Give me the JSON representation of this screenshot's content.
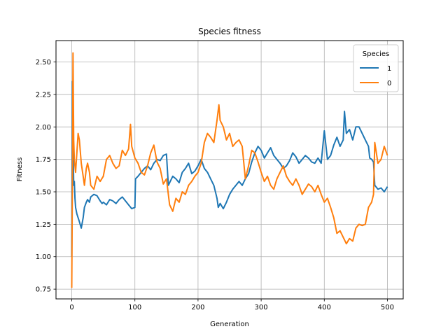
{
  "chart_data": {
    "type": "line",
    "title": "Species fitness",
    "xlabel": "Generation",
    "ylabel": "Fitness",
    "xlim": [
      -25,
      525
    ],
    "ylim": [
      0.675,
      2.665
    ],
    "xticks": [
      0,
      100,
      200,
      300,
      400,
      500
    ],
    "yticks": [
      0.75,
      1.0,
      1.25,
      1.5,
      1.75,
      2.0,
      2.25,
      2.5
    ],
    "xtick_labels": [
      "0",
      "100",
      "200",
      "300",
      "400",
      "500"
    ],
    "ytick_labels": [
      "0.75",
      "1.00",
      "1.25",
      "1.50",
      "1.75",
      "2.00",
      "2.25",
      "2.50"
    ],
    "grid": true,
    "legend": {
      "title": "Species",
      "placement": "top-right"
    },
    "series": [
      {
        "name": "1",
        "color": "#1f77b4",
        "x": [
          0,
          1,
          2,
          3,
          4,
          5,
          6,
          8,
          10,
          12,
          15,
          18,
          20,
          23,
          25,
          28,
          30,
          35,
          40,
          45,
          48,
          50,
          55,
          60,
          65,
          70,
          75,
          80,
          85,
          90,
          95,
          100,
          101,
          105,
          110,
          115,
          120,
          125,
          130,
          135,
          140,
          145,
          150,
          153,
          156,
          160,
          165,
          170,
          175,
          180,
          185,
          190,
          195,
          200,
          205,
          210,
          215,
          220,
          225,
          230,
          232,
          235,
          240,
          245,
          250,
          255,
          260,
          265,
          270,
          275,
          280,
          285,
          290,
          295,
          300,
          305,
          310,
          315,
          320,
          325,
          330,
          335,
          340,
          345,
          350,
          355,
          360,
          365,
          370,
          375,
          380,
          385,
          390,
          395,
          400,
          405,
          410,
          415,
          420,
          425,
          430,
          432,
          435,
          440,
          445,
          450,
          455,
          460,
          465,
          470,
          472,
          475,
          478,
          480,
          485,
          490,
          495,
          500
        ],
        "y": [
          1.0,
          2.35,
          1.95,
          1.55,
          1.58,
          1.45,
          1.38,
          1.33,
          1.3,
          1.27,
          1.22,
          1.3,
          1.38,
          1.42,
          1.44,
          1.42,
          1.46,
          1.48,
          1.47,
          1.43,
          1.41,
          1.42,
          1.4,
          1.44,
          1.43,
          1.41,
          1.44,
          1.46,
          1.43,
          1.4,
          1.37,
          1.38,
          1.6,
          1.62,
          1.65,
          1.68,
          1.7,
          1.67,
          1.72,
          1.75,
          1.74,
          1.78,
          1.79,
          1.55,
          1.58,
          1.62,
          1.6,
          1.57,
          1.65,
          1.68,
          1.72,
          1.64,
          1.66,
          1.7,
          1.75,
          1.68,
          1.65,
          1.6,
          1.55,
          1.45,
          1.38,
          1.41,
          1.37,
          1.42,
          1.48,
          1.52,
          1.55,
          1.58,
          1.55,
          1.6,
          1.64,
          1.73,
          1.8,
          1.85,
          1.82,
          1.76,
          1.8,
          1.84,
          1.78,
          1.75,
          1.72,
          1.68,
          1.7,
          1.74,
          1.8,
          1.77,
          1.72,
          1.75,
          1.78,
          1.76,
          1.73,
          1.72,
          1.76,
          1.72,
          1.97,
          1.75,
          1.78,
          1.86,
          1.92,
          1.85,
          1.9,
          2.12,
          1.95,
          1.98,
          1.9,
          2.0,
          2.0,
          1.95,
          1.9,
          1.85,
          1.76,
          1.75,
          1.73,
          1.55,
          1.52,
          1.53,
          1.5,
          1.54
        ]
      },
      {
        "name": "0",
        "color": "#ff7f0e",
        "x": [
          0,
          1,
          2,
          3,
          4,
          5,
          6,
          8,
          10,
          12,
          15,
          18,
          20,
          23,
          25,
          28,
          30,
          35,
          40,
          45,
          50,
          55,
          60,
          65,
          70,
          75,
          80,
          85,
          90,
          93,
          95,
          100,
          105,
          110,
          115,
          120,
          125,
          130,
          135,
          140,
          145,
          150,
          155,
          160,
          165,
          170,
          175,
          180,
          185,
          190,
          195,
          200,
          205,
          210,
          215,
          220,
          225,
          230,
          233,
          235,
          240,
          245,
          250,
          255,
          260,
          265,
          270,
          275,
          280,
          285,
          290,
          295,
          300,
          305,
          310,
          315,
          320,
          325,
          330,
          335,
          340,
          345,
          350,
          355,
          360,
          365,
          370,
          375,
          380,
          385,
          390,
          395,
          400,
          405,
          410,
          415,
          420,
          425,
          430,
          435,
          440,
          445,
          450,
          455,
          460,
          465,
          470,
          475,
          478,
          480,
          485,
          490,
          495,
          500
        ],
        "y": [
          0.76,
          1.55,
          2.57,
          1.9,
          1.75,
          1.7,
          1.65,
          1.8,
          1.95,
          1.9,
          1.72,
          1.62,
          1.55,
          1.68,
          1.72,
          1.65,
          1.55,
          1.52,
          1.62,
          1.58,
          1.62,
          1.75,
          1.78,
          1.72,
          1.68,
          1.7,
          1.82,
          1.78,
          1.83,
          2.02,
          1.85,
          1.76,
          1.72,
          1.65,
          1.63,
          1.7,
          1.8,
          1.86,
          1.73,
          1.68,
          1.56,
          1.6,
          1.4,
          1.35,
          1.45,
          1.42,
          1.5,
          1.48,
          1.55,
          1.58,
          1.62,
          1.65,
          1.72,
          1.88,
          1.95,
          1.92,
          1.88,
          2.05,
          2.17,
          2.05,
          2.0,
          1.9,
          1.95,
          1.85,
          1.88,
          1.9,
          1.85,
          1.6,
          1.7,
          1.82,
          1.8,
          1.73,
          1.65,
          1.58,
          1.62,
          1.55,
          1.52,
          1.6,
          1.65,
          1.7,
          1.62,
          1.58,
          1.55,
          1.6,
          1.55,
          1.48,
          1.52,
          1.56,
          1.54,
          1.5,
          1.55,
          1.48,
          1.42,
          1.45,
          1.38,
          1.3,
          1.18,
          1.2,
          1.15,
          1.1,
          1.14,
          1.12,
          1.22,
          1.25,
          1.24,
          1.25,
          1.38,
          1.42,
          1.48,
          1.88,
          1.72,
          1.75,
          1.85,
          1.78
        ]
      }
    ]
  }
}
